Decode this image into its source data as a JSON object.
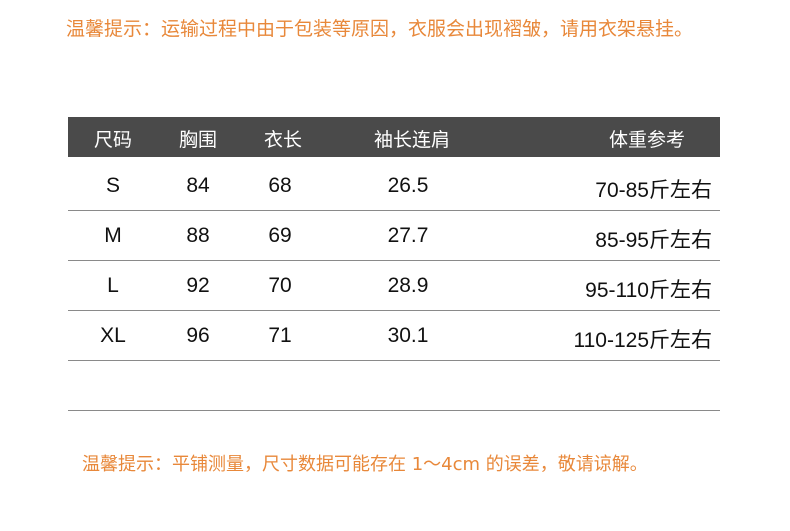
{
  "notice_top": "温馨提示：运输过程中由于包装等原因，衣服会出现褶皱，请用衣架悬挂。",
  "notice_bottom": "温馨提示：平铺测量，尺寸数据可能存在 1～4cm 的误差，敬请谅解。",
  "colors": {
    "notice": "#e8883a",
    "header_bg": "#4a4a4a"
  },
  "table": {
    "headers": [
      "尺码",
      "胸围",
      "衣长",
      "袖长连肩",
      "体重参考"
    ],
    "rows": [
      [
        "S",
        "84",
        "68",
        "26.5",
        "70-85斤左右"
      ],
      [
        "M",
        "88",
        "69",
        "27.7",
        "85-95斤左右"
      ],
      [
        "L",
        "92",
        "70",
        "28.9",
        "95-110斤左右"
      ],
      [
        "XL",
        "96",
        "71",
        "30.1",
        "110-125斤左右"
      ]
    ]
  }
}
